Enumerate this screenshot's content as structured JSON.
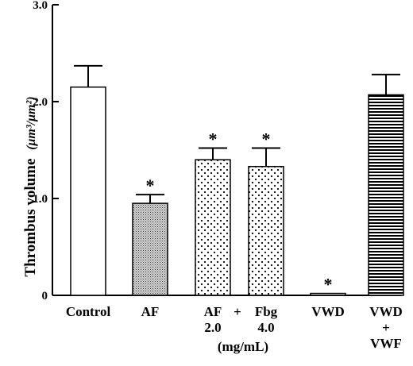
{
  "chart_data": {
    "type": "bar",
    "ylabel": "Thrombus volume",
    "ylabel_unit": "(μm³/μm²)",
    "ylim": [
      0,
      3.0
    ],
    "yticks": [
      "0",
      "1.0",
      "2.0",
      "3.0"
    ],
    "grid": false,
    "legend": "none",
    "bars": [
      {
        "label_lines": [
          "Control"
        ],
        "value": 2.15,
        "error": 0.22,
        "fill": "white",
        "star": false
      },
      {
        "label_lines": [
          "AF"
        ],
        "value": 0.95,
        "error": 0.09,
        "fill": "dense-dots",
        "star": true
      },
      {
        "label_lines": [
          "AF",
          "2.0"
        ],
        "value": 1.4,
        "error": 0.12,
        "fill": "sparse-dots",
        "star": true
      },
      {
        "label_lines": [
          "Fbg",
          "4.0"
        ],
        "value": 1.33,
        "error": 0.19,
        "fill": "sparse-dots",
        "star": true
      },
      {
        "label_lines": [
          "VWD"
        ],
        "value": 0.02,
        "error": 0.0,
        "fill": "white",
        "star": true
      },
      {
        "label_lines": [
          "VWD",
          "+",
          "VWF"
        ],
        "value": 2.07,
        "error": 0.21,
        "fill": "h-stripes",
        "star": false
      }
    ],
    "plus_between_3_4": "+",
    "unit_note": "(mg/mL)",
    "star_symbol": "*"
  }
}
